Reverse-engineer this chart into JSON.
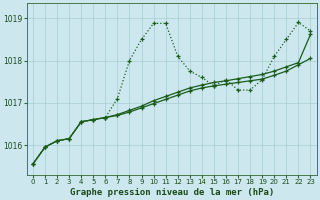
{
  "title": "Graphe pression niveau de la mer (hPa)",
  "bg_color": "#cce8ee",
  "grid_color": "#a8ccd4",
  "line_color": "#1a5c1a",
  "xlim": [
    -0.5,
    23.5
  ],
  "ylim": [
    1015.3,
    1019.35
  ],
  "yticks": [
    1016,
    1017,
    1018,
    1019
  ],
  "xticks": [
    0,
    1,
    2,
    3,
    4,
    5,
    6,
    7,
    8,
    9,
    10,
    11,
    12,
    13,
    14,
    15,
    16,
    17,
    18,
    19,
    20,
    21,
    22,
    23
  ],
  "series1_x": [
    0,
    1,
    2,
    3,
    4,
    5,
    6,
    7,
    8,
    9,
    10,
    11,
    12,
    13,
    14,
    15,
    16,
    17,
    18,
    19,
    20,
    21,
    22,
    23
  ],
  "series1_y": [
    1015.55,
    1015.95,
    1016.1,
    1016.15,
    1016.55,
    1016.6,
    1016.65,
    1017.1,
    1018.0,
    1018.5,
    1018.88,
    1018.88,
    1018.1,
    1017.75,
    1017.6,
    1017.4,
    1017.55,
    1017.3,
    1017.3,
    1017.55,
    1018.1,
    1018.5,
    1018.9,
    1018.7
  ],
  "series2_x": [
    0,
    1,
    2,
    3,
    4,
    5,
    6,
    7,
    8,
    9,
    10,
    11,
    12,
    13,
    14,
    15,
    16,
    17,
    18,
    19,
    20,
    21,
    22,
    23
  ],
  "series2_y": [
    1015.55,
    1015.95,
    1016.1,
    1016.15,
    1016.55,
    1016.6,
    1016.65,
    1016.72,
    1016.82,
    1016.92,
    1017.05,
    1017.15,
    1017.25,
    1017.35,
    1017.42,
    1017.48,
    1017.52,
    1017.57,
    1017.62,
    1017.67,
    1017.75,
    1017.85,
    1017.95,
    1018.62
  ],
  "series3_x": [
    0,
    1,
    2,
    3,
    4,
    5,
    6,
    7,
    8,
    9,
    10,
    11,
    12,
    13,
    14,
    15,
    16,
    17,
    18,
    19,
    20,
    21,
    22,
    23
  ],
  "series3_y": [
    1015.55,
    1015.95,
    1016.1,
    1016.15,
    1016.55,
    1016.6,
    1016.65,
    1016.7,
    1016.78,
    1016.88,
    1016.98,
    1017.08,
    1017.18,
    1017.28,
    1017.35,
    1017.4,
    1017.44,
    1017.48,
    1017.52,
    1017.56,
    1017.65,
    1017.75,
    1017.9,
    1018.05
  ]
}
